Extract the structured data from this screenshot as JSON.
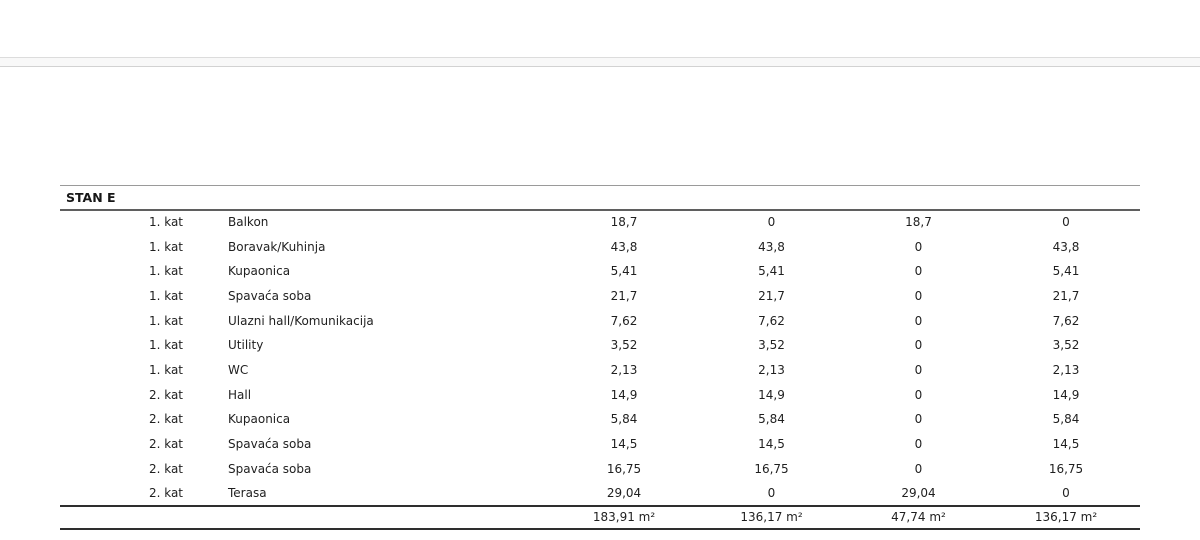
{
  "colors": {
    "background": "#ffffff",
    "top_band_fill": "#f8f8f8",
    "top_band_border": "#d2d2d2",
    "table_header_rule": "#5f5f5f",
    "table_total_rule": "#2e2e2e",
    "text": "#1f1f1f"
  },
  "table": {
    "title": "STAN E",
    "rows": [
      {
        "floor": "1. kat",
        "room": "Balkon",
        "values": [
          "18,7",
          "0",
          "18,7",
          "0"
        ]
      },
      {
        "floor": "1. kat",
        "room": "Boravak/Kuhinja",
        "values": [
          "43,8",
          "43,8",
          "0",
          "43,8"
        ]
      },
      {
        "floor": "1. kat",
        "room": "Kupaonica",
        "values": [
          "5,41",
          "5,41",
          "0",
          "5,41"
        ]
      },
      {
        "floor": "1. kat",
        "room": "Spavaća soba",
        "values": [
          "21,7",
          "21,7",
          "0",
          "21,7"
        ]
      },
      {
        "floor": "1. kat",
        "room": "Ulazni hall/Komunikacija",
        "values": [
          "7,62",
          "7,62",
          "0",
          "7,62"
        ]
      },
      {
        "floor": "1. kat",
        "room": "Utility",
        "values": [
          "3,52",
          "3,52",
          "0",
          "3,52"
        ]
      },
      {
        "floor": "1. kat",
        "room": "WC",
        "values": [
          "2,13",
          "2,13",
          "0",
          "2,13"
        ]
      },
      {
        "floor": "2. kat",
        "room": "Hall",
        "values": [
          "14,9",
          "14,9",
          "0",
          "14,9"
        ]
      },
      {
        "floor": "2. kat",
        "room": "Kupaonica",
        "values": [
          "5,84",
          "5,84",
          "0",
          "5,84"
        ]
      },
      {
        "floor": "2. kat",
        "room": "Spavaća soba",
        "values": [
          "14,5",
          "14,5",
          "0",
          "14,5"
        ]
      },
      {
        "floor": "2. kat",
        "room": "Spavaća soba",
        "values": [
          "16,75",
          "16,75",
          "0",
          "16,75"
        ]
      },
      {
        "floor": "2. kat",
        "room": "Terasa",
        "values": [
          "29,04",
          "0",
          "29,04",
          "0"
        ]
      }
    ],
    "totals": [
      "183,91 m²",
      "136,17 m²",
      "47,74 m²",
      "136,17 m²"
    ]
  }
}
